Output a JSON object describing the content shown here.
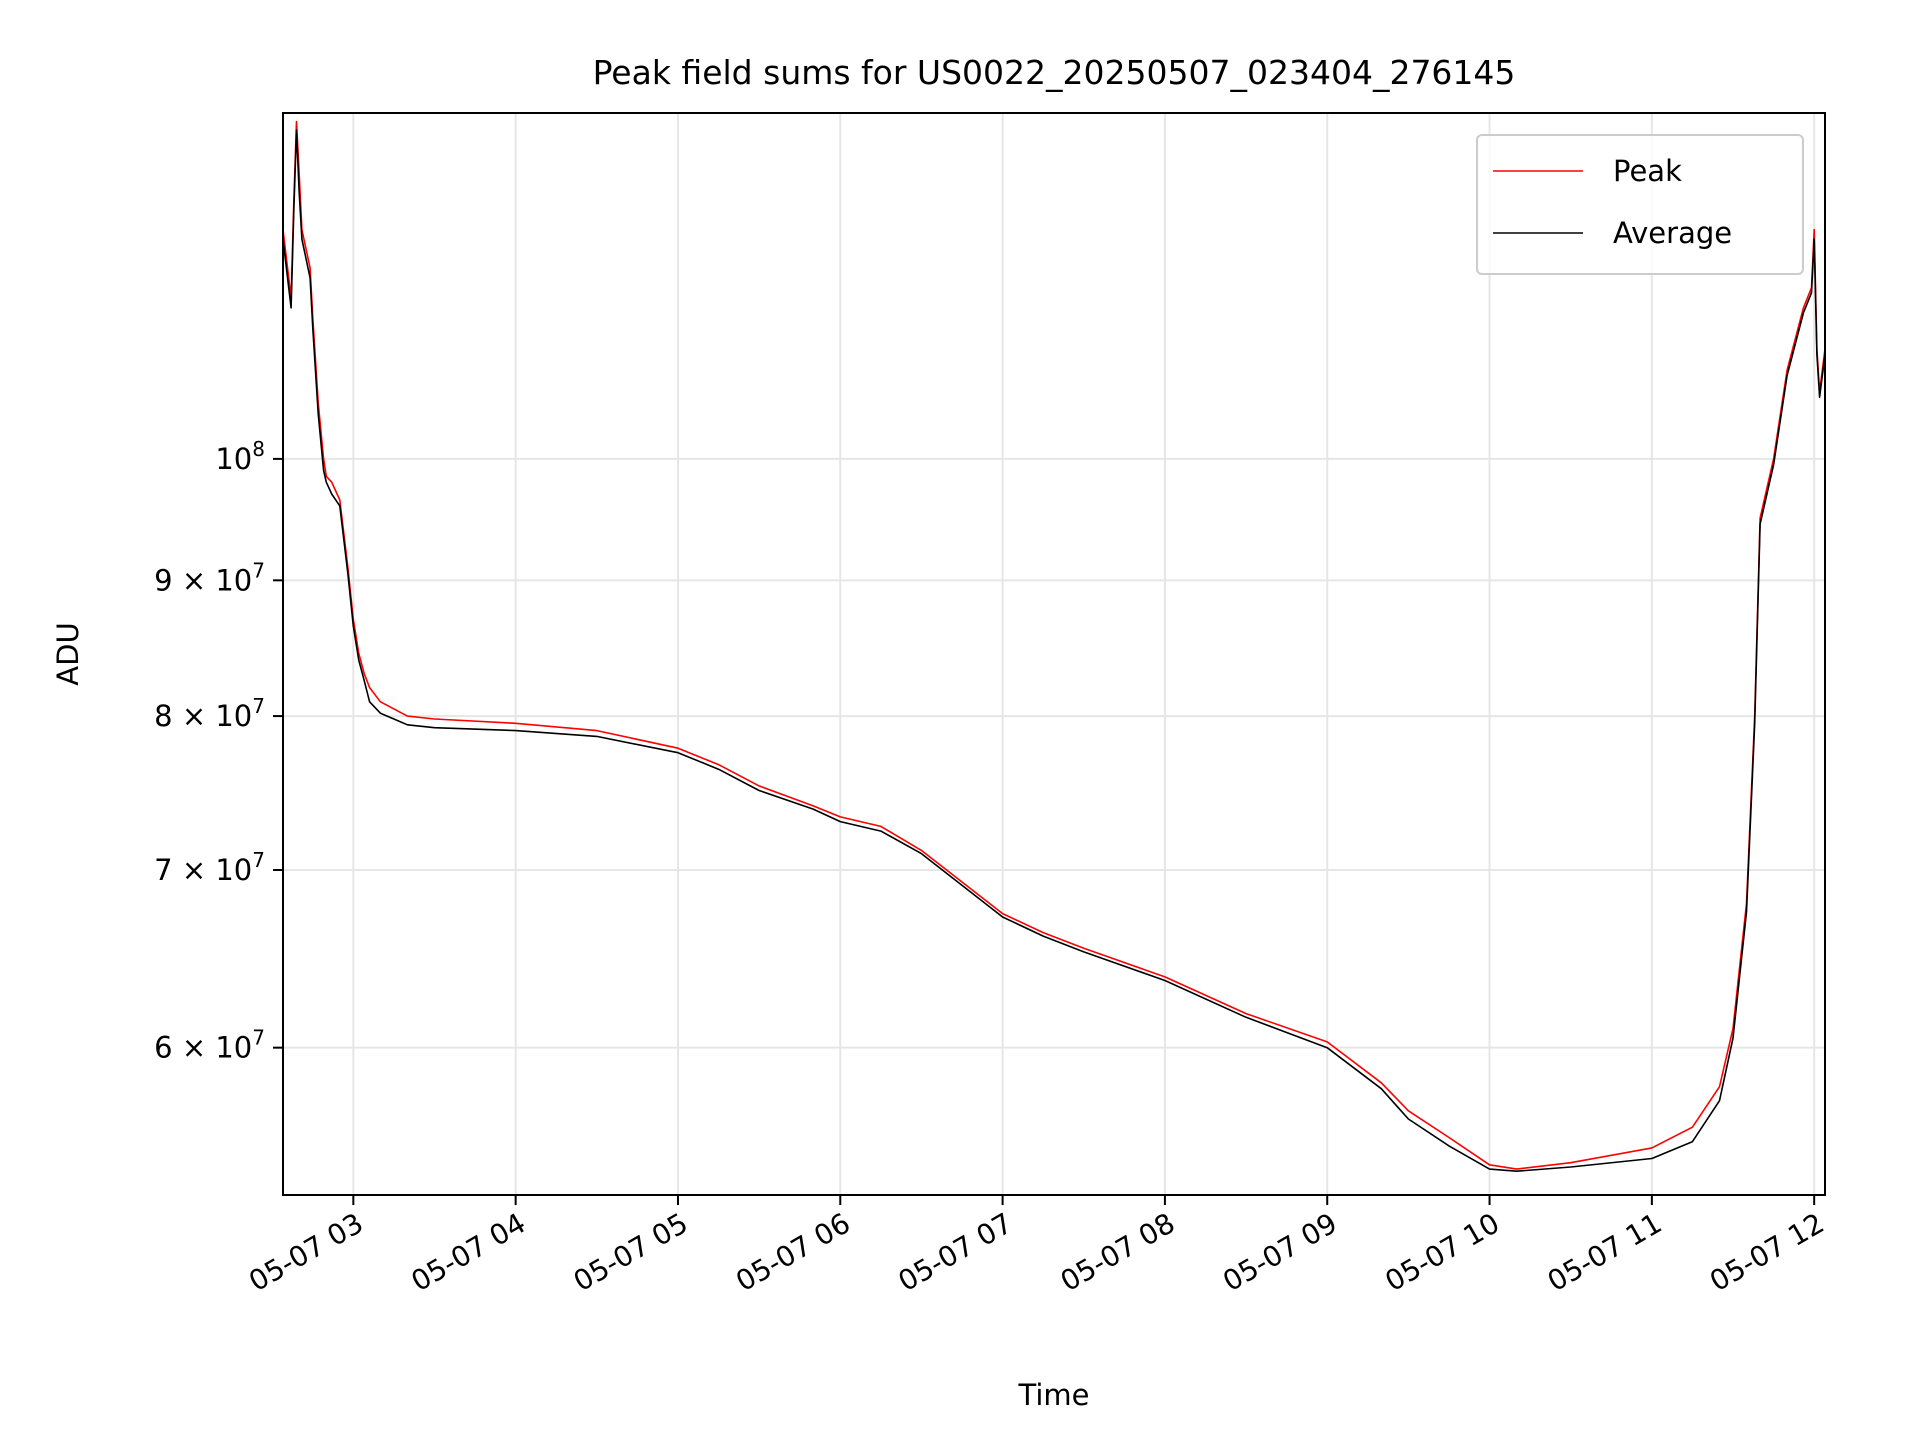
{
  "chart_data": {
    "type": "line",
    "title": "Peak field sums for US0022_20250507_023404_276145",
    "xlabel": "Time",
    "ylabel": "ADU",
    "y_scale": "log",
    "xlim": [
      "2025-05-07 02:34",
      "2025-05-07 12:04"
    ],
    "ylim": [
      52800000,
      135000000
    ],
    "grid": true,
    "legend_position": "top-right",
    "x_tick_labels": [
      "05-07 03",
      "05-07 04",
      "05-07 05",
      "05-07 06",
      "05-07 07",
      "05-07 08",
      "05-07 09",
      "05-07 10",
      "05-07 11",
      "05-07 12"
    ],
    "y_ticks": [
      {
        "value": 60000000,
        "mantissa": "6",
        "exponent": "7"
      },
      {
        "value": 70000000,
        "mantissa": "7",
        "exponent": "7"
      },
      {
        "value": 80000000,
        "mantissa": "8",
        "exponent": "7"
      },
      {
        "value": 90000000,
        "mantissa": "9",
        "exponent": "7"
      },
      {
        "value": 100000000,
        "mantissa": "",
        "exponent": "8"
      }
    ],
    "times_symbol": "×",
    "base": "10",
    "x": [
      "02:34",
      "02:37",
      "02:38",
      "02:39",
      "02:40",
      "02:41",
      "02:44",
      "02:45",
      "02:47",
      "02:49",
      "02:50",
      "02:52",
      "02:55",
      "02:58",
      "03:00",
      "03:02",
      "03:04",
      "03:06",
      "03:10",
      "03:15",
      "03:20",
      "03:30",
      "04:00",
      "04:30",
      "05:00",
      "05:15",
      "05:30",
      "05:50",
      "06:00",
      "06:15",
      "06:30",
      "07:00",
      "07:15",
      "07:30",
      "08:00",
      "08:30",
      "09:00",
      "09:20",
      "09:30",
      "09:45",
      "10:00",
      "10:10",
      "10:30",
      "11:00",
      "11:15",
      "11:25",
      "11:30",
      "11:35",
      "11:38",
      "11:40",
      "11:45",
      "11:50",
      "11:56",
      "11:59",
      "12:00",
      "12:01",
      "12:02",
      "12:04"
    ],
    "series": [
      {
        "name": "Peak",
        "color": "#ff0000",
        "values": [
          122000000,
          115000000,
          125000000,
          134000000,
          128000000,
          122000000,
          118000000,
          113000000,
          105000000,
          100000000,
          98500000,
          98000000,
          96500000,
          91000000,
          87000000,
          84500000,
          83000000,
          82000000,
          81000000,
          80500000,
          80000000,
          79800000,
          79500000,
          79000000,
          77800000,
          76700000,
          75300000,
          74000000,
          73300000,
          72700000,
          71200000,
          67400000,
          66300000,
          65400000,
          63800000,
          61800000,
          60300000,
          58200000,
          56800000,
          55500000,
          54200000,
          54000000,
          54300000,
          55000000,
          56000000,
          58000000,
          61000000,
          68000000,
          80000000,
          95000000,
          100000000,
          108000000,
          114000000,
          116000000,
          122000000,
          110000000,
          106000000,
          110000000
        ]
      },
      {
        "name": "Average",
        "color": "#000000",
        "values": [
          121000000,
          114000000,
          124000000,
          133000000,
          126000000,
          121000000,
          117000000,
          112000000,
          104000000,
          99000000,
          98000000,
          97000000,
          96000000,
          90500000,
          86500000,
          84000000,
          82500000,
          81000000,
          80200000,
          79800000,
          79400000,
          79200000,
          79000000,
          78600000,
          77500000,
          76400000,
          75000000,
          73800000,
          73000000,
          72400000,
          71000000,
          67200000,
          66100000,
          65200000,
          63600000,
          61600000,
          60000000,
          57900000,
          56400000,
          55100000,
          54000000,
          53900000,
          54100000,
          54500000,
          55300000,
          57300000,
          60500000,
          67500000,
          79500000,
          94500000,
          99500000,
          107500000,
          113500000,
          115500000,
          121000000,
          109500000,
          105500000,
          109500000
        ]
      }
    ]
  }
}
